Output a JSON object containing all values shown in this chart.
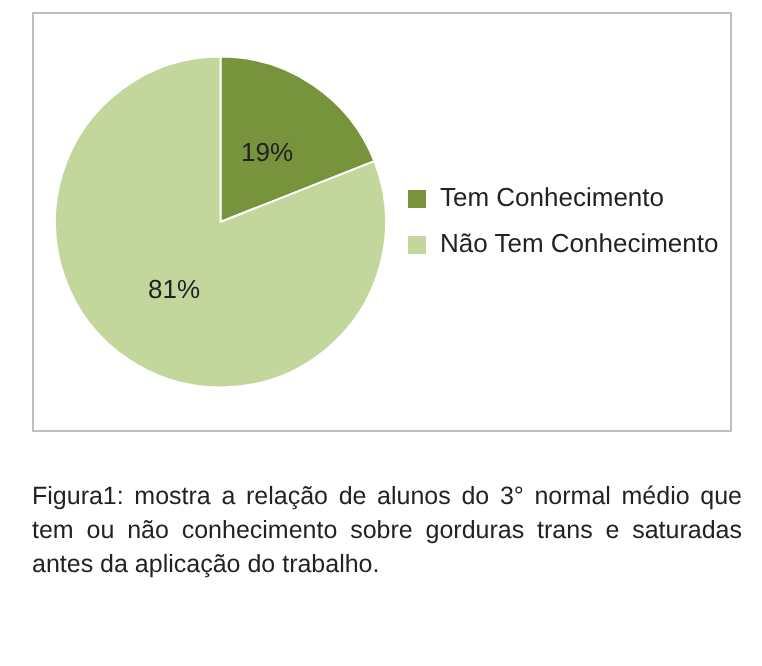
{
  "chart_data": {
    "type": "pie",
    "categories": [
      "Tem Conhecimento",
      "Não Tem Conhecimento"
    ],
    "values": [
      19,
      81
    ],
    "colors": [
      "#77933c",
      "#c3d69b"
    ],
    "value_labels": [
      "19%",
      "81%"
    ],
    "legend": "right",
    "annotations": [
      "Figura1: mostra a relação de alunos do 3° normal médio que tem ou não conhecimento sobre gorduras trans e saturadas antes da aplicação do trabalho."
    ]
  }
}
